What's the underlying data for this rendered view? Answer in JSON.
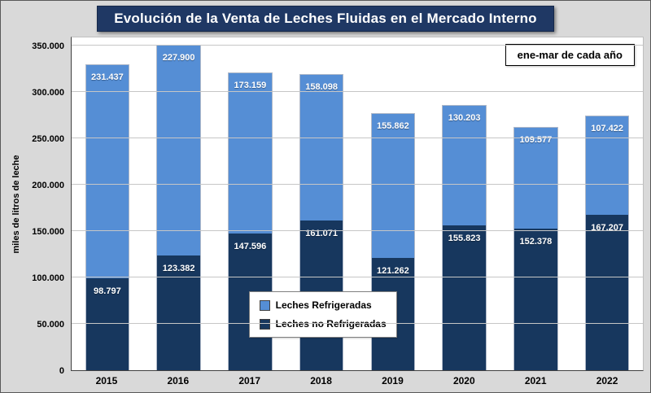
{
  "chart_data": {
    "type": "bar",
    "stacked": true,
    "title": "Evolución de la Venta de Leches Fluidas en el Mercado Interno",
    "annotation": "ene-mar de cada año",
    "ylabel": "miles de litros de leche",
    "categories": [
      "2015",
      "2016",
      "2017",
      "2018",
      "2019",
      "2020",
      "2021",
      "2022"
    ],
    "series": [
      {
        "name": "Leches no Refrigeradas",
        "color": "#17375E",
        "values": [
          98797,
          123382,
          147596,
          161071,
          121262,
          155823,
          152378,
          167207
        ],
        "labels": [
          "98.797",
          "123.382",
          "147.596",
          "161.071",
          "121.262",
          "155.823",
          "152.378",
          "167.207"
        ]
      },
      {
        "name": "Leches Refrigeradas",
        "color": "#558ED5",
        "values": [
          231437,
          227900,
          173159,
          158098,
          155862,
          130203,
          109577,
          107422
        ],
        "labels": [
          "231.437",
          "227.900",
          "173.159",
          "158.098",
          "155.862",
          "130.203",
          "109.577",
          "107.422"
        ]
      }
    ],
    "legend_order": [
      "Leches Refrigeradas",
      "Leches no Refrigeradas"
    ],
    "legend_colors": [
      "#558ED5",
      "#17375E"
    ],
    "ylim": [
      0,
      350000
    ],
    "ytick_step": 50000,
    "ytick_labels": [
      "0",
      "50.000",
      "100.000",
      "150.000",
      "200.000",
      "250.000",
      "300.000",
      "350.000"
    ],
    "grid": true,
    "legend_position": "center-bottom"
  }
}
